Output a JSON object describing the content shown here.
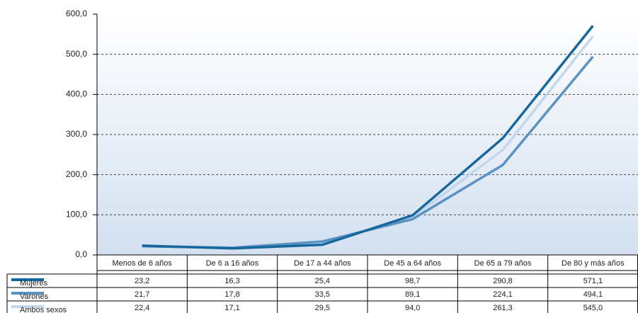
{
  "chart_data": {
    "type": "line",
    "categories": [
      "Menos de 6 años",
      "De 6 a 16 años",
      "De 17 a 44 años",
      "De 45 a 64 años",
      "De 65 a 79 años",
      "De 80 y más años"
    ],
    "series": [
      {
        "name": "Mujeres",
        "color": "#17679f",
        "values": [
          23.2,
          16.3,
          25.4,
          98.7,
          290.8,
          571.1
        ],
        "value_labels": [
          "23,2",
          "16,3",
          "25,4",
          "98,7",
          "290,8",
          "571,1"
        ]
      },
      {
        "name": "Varones",
        "color": "#5a92c3",
        "values": [
          21.7,
          17.8,
          33.5,
          89.1,
          224.1,
          494.1
        ],
        "value_labels": [
          "21,7",
          "17,8",
          "33,5",
          "89,1",
          "224,1",
          "494,1"
        ]
      },
      {
        "name": "Ambos sexos",
        "color": "#c2d7eb",
        "values": [
          22.4,
          17.1,
          29.5,
          94.0,
          261.3,
          545.0
        ],
        "value_labels": [
          "22,4",
          "17,1",
          "29,5",
          "94,0",
          "261,3",
          "545,0"
        ]
      }
    ],
    "ylim": [
      0,
      600
    ],
    "yticks": [
      {
        "value": 0,
        "label": "0,0"
      },
      {
        "value": 100,
        "label": "100,0"
      },
      {
        "value": 200,
        "label": "200,0"
      },
      {
        "value": 300,
        "label": "300,0"
      },
      {
        "value": 400,
        "label": "400,0"
      },
      {
        "value": 500,
        "label": "500,0"
      },
      {
        "value": 600,
        "label": "600,0"
      }
    ],
    "grid": true
  }
}
